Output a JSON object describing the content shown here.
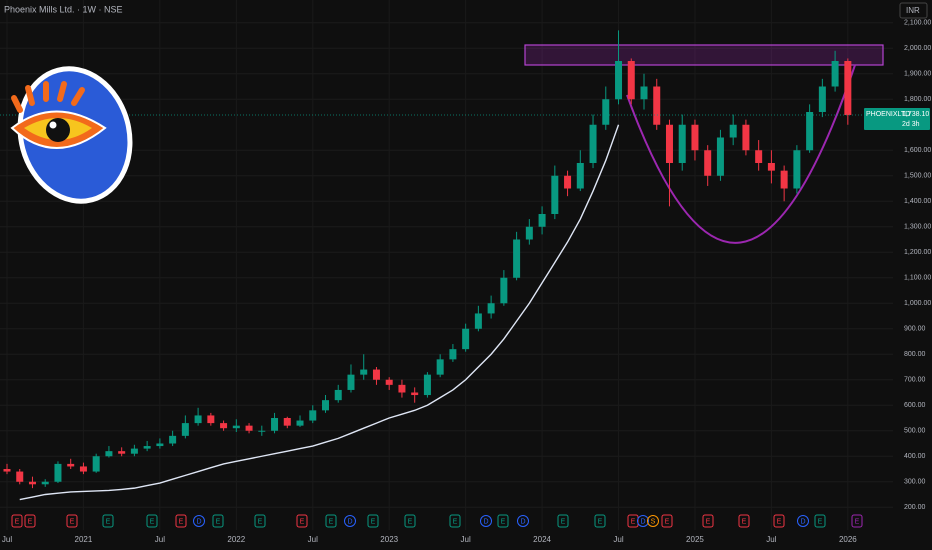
{
  "chart_data": {
    "type": "candlestick",
    "title": "Phoenix Mills Ltd. · 1W · NSE",
    "currency": "INR",
    "symbol": "PHOENIXLTD",
    "last_price": {
      "value": 1738.1,
      "label": "1,738.10"
    },
    "countdown": "2d 3h",
    "categories": [
      "Jul",
      null,
      null,
      null,
      null,
      null,
      "2021",
      null,
      null,
      null,
      null,
      null,
      "Jul",
      null,
      null,
      null,
      null,
      null,
      "2022",
      null,
      null,
      null,
      null,
      null,
      "Jul",
      null,
      null,
      null,
      null,
      null,
      "2023",
      null,
      null,
      null,
      null,
      null,
      "Jul",
      null,
      null,
      null,
      null,
      null,
      "2024",
      null,
      null,
      null,
      null,
      null,
      "Jul",
      null,
      null,
      null,
      null,
      null,
      "2025",
      null,
      null,
      null,
      null,
      null,
      "Jul",
      null,
      null,
      null,
      null,
      null,
      "2026"
    ],
    "open": [
      350,
      340,
      300,
      290,
      300,
      370,
      360,
      340,
      400,
      420,
      410,
      430,
      440,
      450,
      480,
      530,
      560,
      530,
      510,
      520,
      500,
      500,
      550,
      520,
      540,
      580,
      620,
      660,
      720,
      740,
      700,
      680,
      650,
      640,
      720,
      780,
      820,
      900,
      960,
      1000,
      1100,
      1250,
      1300,
      1350,
      1500,
      1450,
      1550,
      1700,
      1800,
      1950,
      1800,
      1850,
      1700,
      1550,
      1700,
      1600,
      1500,
      1650,
      1700,
      1600,
      1550,
      1520,
      1450,
      1600,
      1750,
      1850,
      1950
    ],
    "high": [
      370,
      350,
      320,
      310,
      380,
      390,
      375,
      410,
      440,
      435,
      445,
      460,
      470,
      500,
      560,
      590,
      570,
      540,
      545,
      530,
      520,
      570,
      555,
      560,
      600,
      640,
      680,
      760,
      800,
      750,
      710,
      700,
      670,
      730,
      800,
      840,
      920,
      990,
      1030,
      1130,
      1280,
      1330,
      1380,
      1540,
      1520,
      1600,
      1740,
      1850,
      2070,
      1960,
      1900,
      1880,
      1720,
      1740,
      1720,
      1620,
      1680,
      1740,
      1720,
      1640,
      1600,
      1540,
      1620,
      1780,
      1880,
      1990,
      1960
    ],
    "low": [
      330,
      290,
      275,
      280,
      295,
      350,
      330,
      335,
      395,
      400,
      400,
      420,
      430,
      440,
      470,
      520,
      520,
      500,
      495,
      490,
      480,
      490,
      510,
      515,
      530,
      570,
      610,
      650,
      700,
      680,
      660,
      630,
      610,
      630,
      710,
      770,
      810,
      890,
      940,
      990,
      1090,
      1230,
      1270,
      1330,
      1420,
      1440,
      1530,
      1680,
      1780,
      1780,
      1760,
      1680,
      1380,
      1520,
      1560,
      1460,
      1480,
      1620,
      1580,
      1520,
      1470,
      1400,
      1430,
      1590,
      1730,
      1830,
      1700
    ],
    "close": [
      340,
      300,
      290,
      300,
      370,
      360,
      340,
      400,
      420,
      410,
      430,
      440,
      450,
      480,
      530,
      560,
      530,
      510,
      520,
      500,
      500,
      550,
      520,
      540,
      580,
      620,
      660,
      720,
      740,
      700,
      680,
      650,
      640,
      720,
      780,
      820,
      900,
      960,
      1000,
      1100,
      1250,
      1300,
      1350,
      1500,
      1450,
      1550,
      1700,
      1800,
      1950,
      1800,
      1850,
      1700,
      1550,
      1700,
      1600,
      1500,
      1650,
      1700,
      1600,
      1550,
      1520,
      1450,
      1600,
      1750,
      1850,
      1950,
      1738.1
    ],
    "moving_average": [
      null,
      230,
      240,
      250,
      255,
      260,
      262,
      264,
      266,
      270,
      275,
      285,
      295,
      310,
      325,
      340,
      355,
      370,
      380,
      390,
      400,
      410,
      420,
      430,
      440,
      455,
      470,
      490,
      510,
      530,
      550,
      565,
      580,
      600,
      630,
      660,
      700,
      750,
      800,
      860,
      930,
      1000,
      1080,
      1160,
      1240,
      1330,
      1440,
      1560,
      1700,
      null,
      null,
      null,
      null,
      null,
      null,
      null,
      null,
      null,
      null,
      null,
      null,
      null,
      null,
      null,
      null,
      null,
      null
    ],
    "up_color": "#089981",
    "down_color": "#f23645",
    "ma_color": "#dfe6f5",
    "ylim": [
      150,
      2150
    ],
    "yticks": [
      {
        "value": 200,
        "label": "200.00"
      },
      {
        "value": 300,
        "label": "300.00"
      },
      {
        "value": 400,
        "label": "400.00"
      },
      {
        "value": 500,
        "label": "500.00"
      },
      {
        "value": 600,
        "label": "600.00"
      },
      {
        "value": 700,
        "label": "700.00"
      },
      {
        "value": 800,
        "label": "800.00"
      },
      {
        "value": 900,
        "label": "900.00"
      },
      {
        "value": 1000,
        "label": "1,000.00"
      },
      {
        "value": 1100,
        "label": "1,100.00"
      },
      {
        "value": 1200,
        "label": "1,200.00"
      },
      {
        "value": 1300,
        "label": "1,300.00"
      },
      {
        "value": 1400,
        "label": "1,400.00"
      },
      {
        "value": 1500,
        "label": "1,500.00"
      },
      {
        "value": 1600,
        "label": "1,600.00"
      },
      {
        "value": 1800,
        "label": "1,800.00"
      },
      {
        "value": 1900,
        "label": "1,900.00"
      },
      {
        "value": 2000,
        "label": "2,000.00"
      },
      {
        "value": 2100,
        "label": "2,100.00"
      }
    ],
    "grid": true,
    "events": [
      "E",
      "E",
      "E",
      "E",
      "E",
      "E",
      "D",
      "E",
      "E",
      "E",
      "E",
      "D",
      "E",
      "E",
      "E",
      "D",
      "E",
      "D",
      "E",
      "E",
      "E",
      "D",
      "S",
      "E",
      "E",
      "E",
      "E",
      "D",
      "E",
      "E"
    ]
  }
}
